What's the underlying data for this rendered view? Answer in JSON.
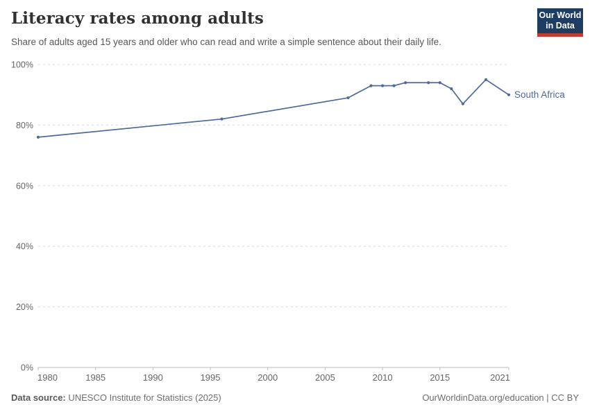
{
  "header": {
    "title": "Literacy rates among adults",
    "subtitle": "Share of adults aged 15 years and older who can read and write a simple sentence about their daily life.",
    "logo": {
      "line1": "Our World",
      "line2": "in Data",
      "bg_color": "#1d3d63",
      "accent_color": "#c43b31"
    }
  },
  "chart_data": {
    "type": "line",
    "title": "Literacy rates among adults",
    "xlabel": "",
    "ylabel": "",
    "xlim": [
      1980,
      2021
    ],
    "ylim": [
      0,
      100
    ],
    "x_ticks": [
      1980,
      1985,
      1990,
      1995,
      2000,
      2005,
      2010,
      2015,
      2021
    ],
    "y_ticks": [
      0,
      20,
      40,
      60,
      80,
      100
    ],
    "y_tick_suffix": "%",
    "grid": "horizontal-dashed",
    "legend_position": "end-of-line-label",
    "series": [
      {
        "name": "South Africa",
        "color": "#4C6A9C",
        "points": [
          {
            "year": 1980,
            "value": 76
          },
          {
            "year": 1996,
            "value": 82
          },
          {
            "year": 2007,
            "value": 89
          },
          {
            "year": 2009,
            "value": 93
          },
          {
            "year": 2010,
            "value": 93
          },
          {
            "year": 2011,
            "value": 93
          },
          {
            "year": 2012,
            "value": 94
          },
          {
            "year": 2014,
            "value": 94
          },
          {
            "year": 2015,
            "value": 94
          },
          {
            "year": 2016,
            "value": 92
          },
          {
            "year": 2017,
            "value": 87
          },
          {
            "year": 2019,
            "value": 95
          },
          {
            "year": 2021,
            "value": 90
          }
        ]
      }
    ],
    "colors": {
      "grid": "#dcdcdc",
      "axis": "#bbbbbb",
      "tick_label": "#666666"
    }
  },
  "footer": {
    "source_label": "Data source:",
    "source_text": " UNESCO Institute for Statistics (2025)",
    "rights": "OurWorldinData.org/education | CC BY"
  }
}
